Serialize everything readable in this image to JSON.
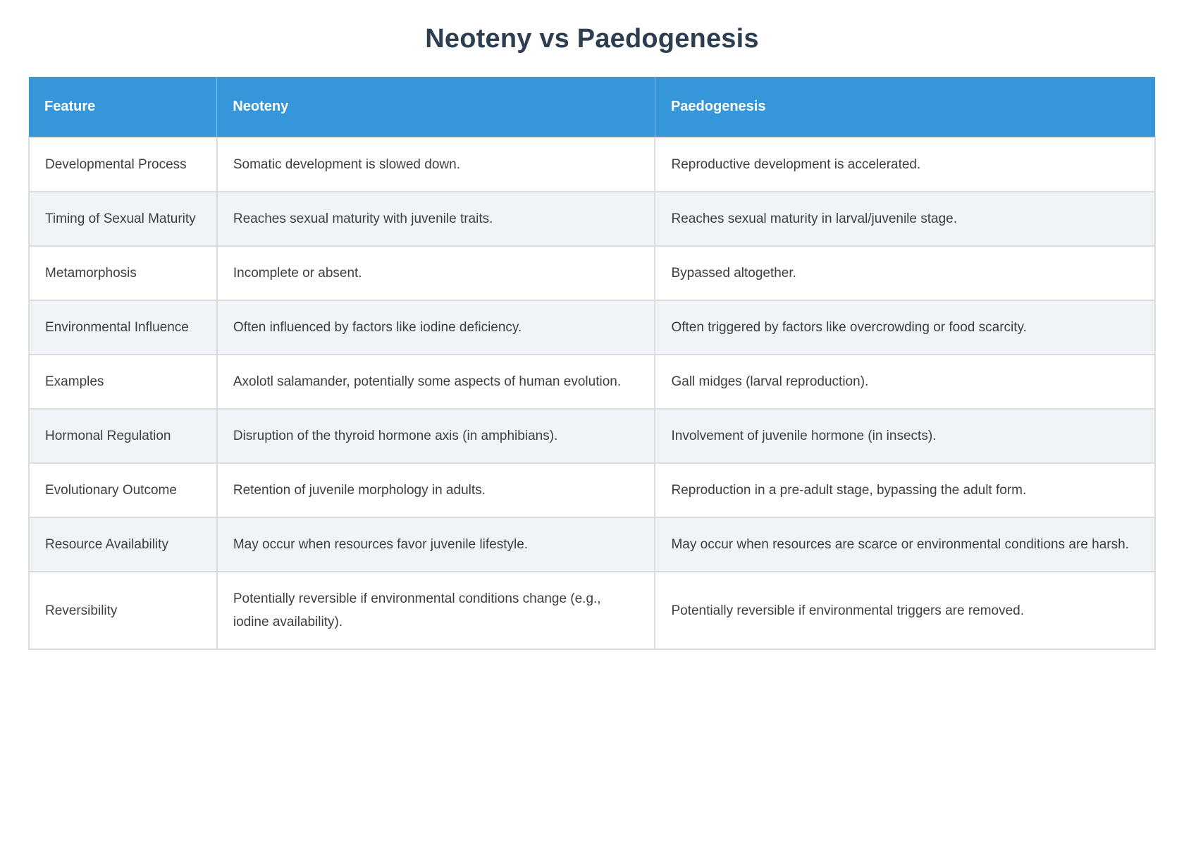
{
  "page": {
    "title": "Neoteny vs Paedogenesis"
  },
  "colors": {
    "header_bg": "#3597DA",
    "header_text": "#FFFFFF",
    "row_bg": "#FFFFFF",
    "row_alt_bg": "#F0F4F9",
    "border": "#DCDCDC",
    "title_text": "#2C3E50",
    "body_text": "#3B3F44"
  },
  "table": {
    "columns": [
      "Feature",
      "Neoteny",
      "Paedogenesis"
    ],
    "rows": [
      {
        "feature": "Developmental Process",
        "neoteny": "Somatic development is slowed down.",
        "paedogenesis": "Reproductive development is accelerated."
      },
      {
        "feature": "Timing of Sexual Maturity",
        "neoteny": "Reaches sexual maturity with juvenile traits.",
        "paedogenesis": "Reaches sexual maturity in larval/juvenile stage."
      },
      {
        "feature": "Metamorphosis",
        "neoteny": "Incomplete or absent.",
        "paedogenesis": "Bypassed altogether."
      },
      {
        "feature": "Environmental Influence",
        "neoteny": "Often influenced by factors like iodine deficiency.",
        "paedogenesis": "Often triggered by factors like overcrowding or food scarcity."
      },
      {
        "feature": "Examples",
        "neoteny": "Axolotl salamander, potentially some aspects of human evolution.",
        "paedogenesis": "Gall midges (larval reproduction)."
      },
      {
        "feature": "Hormonal Regulation",
        "neoteny": "Disruption of the thyroid hormone axis (in amphibians).",
        "paedogenesis": "Involvement of juvenile hormone (in insects)."
      },
      {
        "feature": "Evolutionary Outcome",
        "neoteny": "Retention of juvenile morphology in adults.",
        "paedogenesis": "Reproduction in a pre-adult stage, bypassing the adult form."
      },
      {
        "feature": "Resource Availability",
        "neoteny": "May occur when resources favor juvenile lifestyle.",
        "paedogenesis": "May occur when resources are scarce or environmental conditions are harsh."
      },
      {
        "feature": "Reversibility",
        "neoteny": "Potentially reversible if environmental conditions change (e.g., iodine availability).",
        "paedogenesis": "Potentially reversible if environmental triggers are removed."
      }
    ]
  }
}
